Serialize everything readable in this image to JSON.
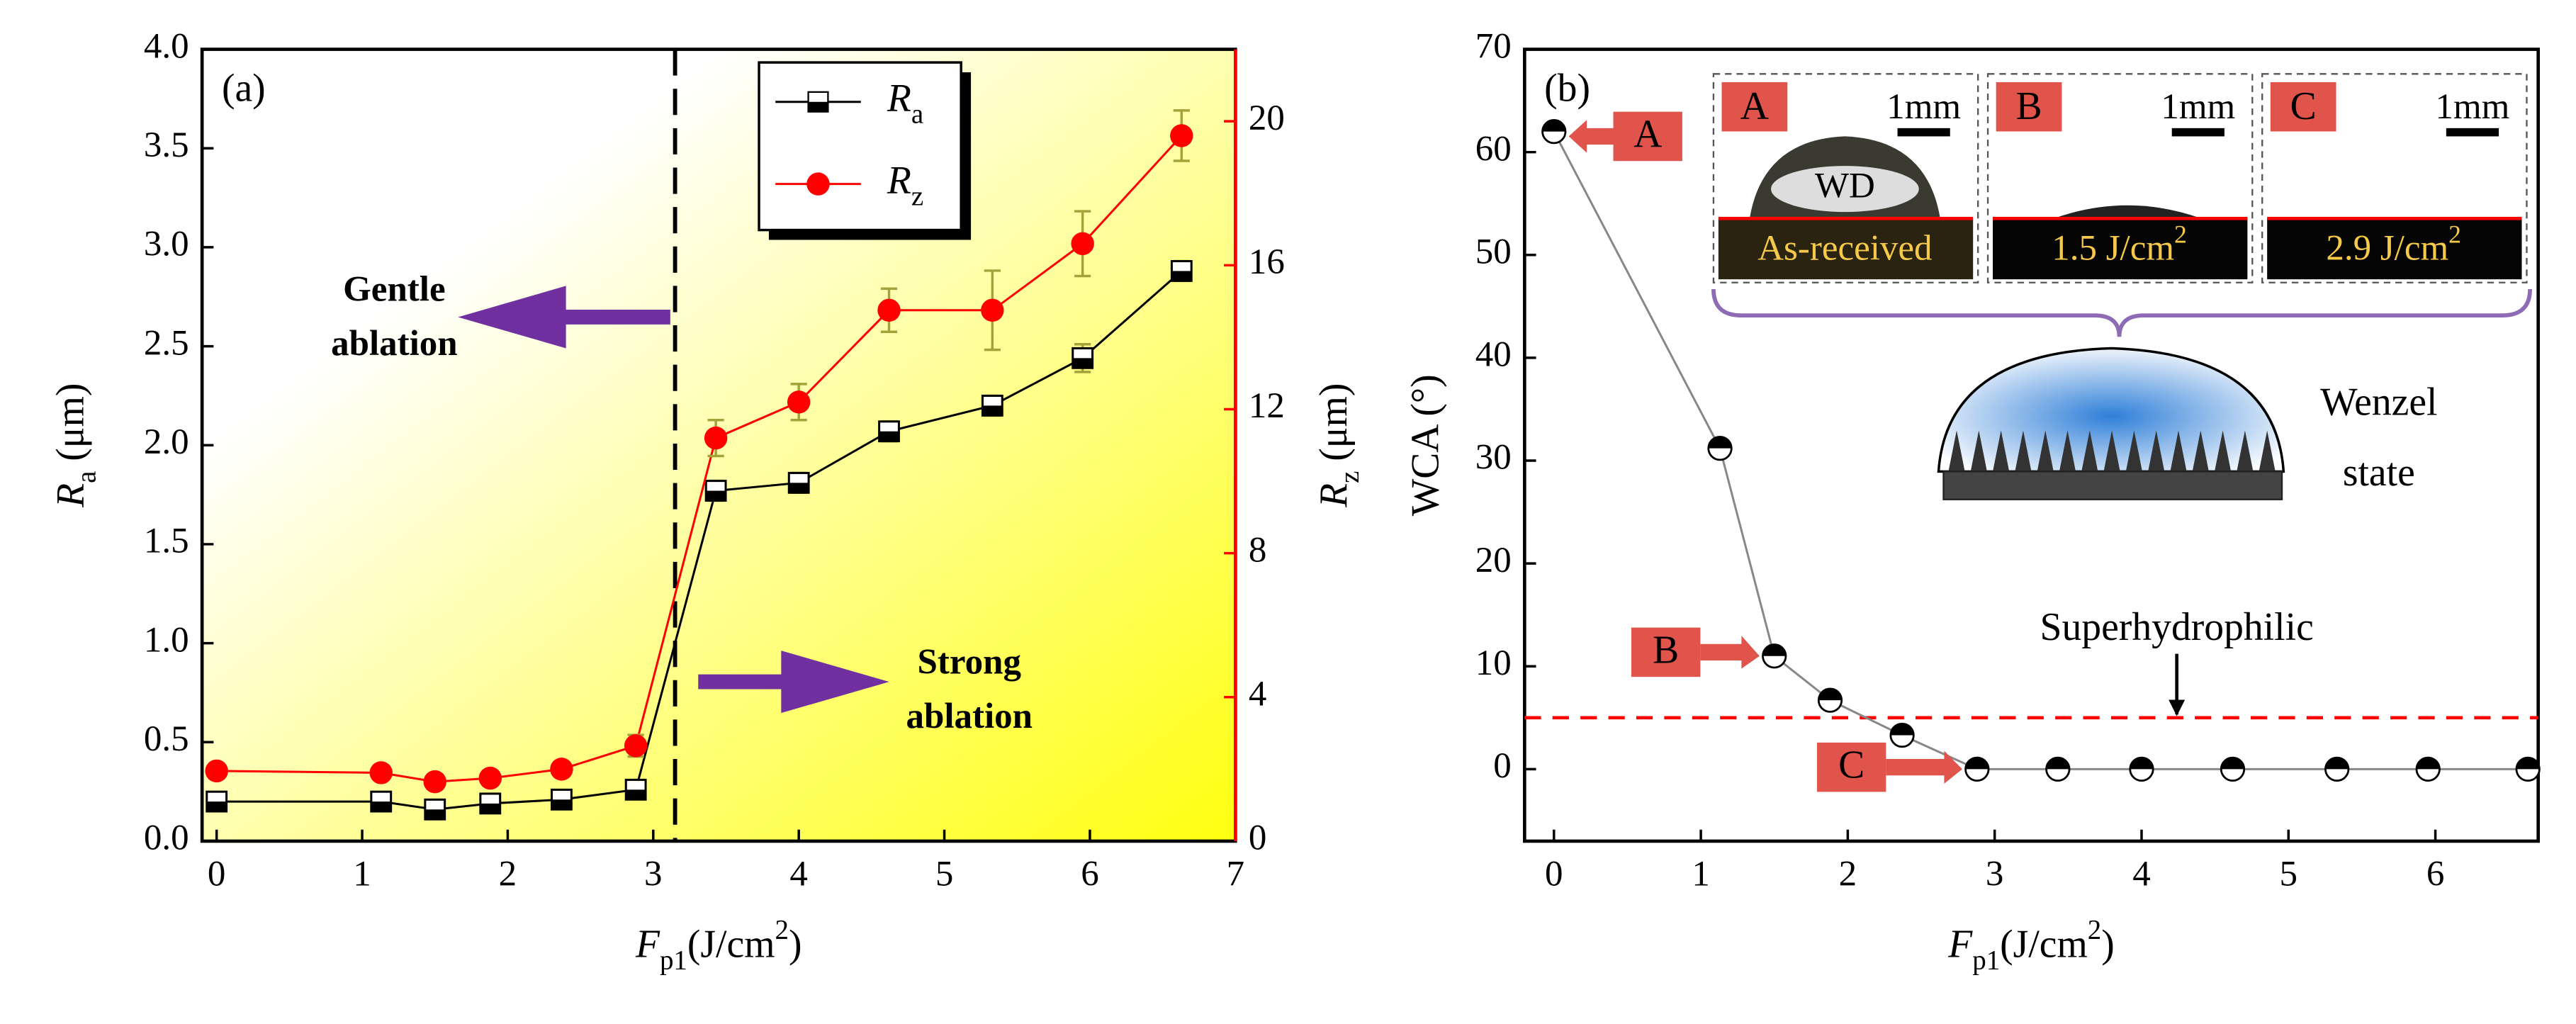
{
  "chart_data": [
    {
      "type": "line",
      "label": "(a)",
      "xlabel": [
        "F",
        "p1",
        "(J/cm",
        "2",
        ")"
      ],
      "ylabel": [
        "R",
        "a",
        " (μm)"
      ],
      "y2label": [
        "R",
        "z",
        " (μm)"
      ],
      "xlim": [
        -0.1,
        7
      ],
      "xticks": [
        0,
        1,
        2,
        3,
        4,
        5,
        6,
        7
      ],
      "ylim": [
        0,
        4
      ],
      "yticks": [
        {
          "value": 0,
          "label": "0.0"
        },
        0.5,
        {
          "value": 1,
          "label": "1.0"
        },
        1.5,
        {
          "value": 2,
          "label": "2.0"
        },
        2.5,
        {
          "value": 3,
          "label": "3.0"
        },
        3.5,
        {
          "value": 4,
          "label": "4.0"
        }
      ],
      "y2lim": [
        0,
        22
      ],
      "y2ticks": [
        0,
        4,
        8,
        12,
        16,
        20
      ],
      "x": [
        0,
        1.13,
        1.5,
        1.88,
        2.37,
        2.88,
        3.43,
        4.0,
        4.62,
        5.33,
        5.95,
        6.63
      ],
      "error_color": "#a3a33a",
      "series": [
        {
          "name": "R",
          "name_sub": "a",
          "color": "#000000",
          "values": [
            0.2,
            0.2,
            0.16,
            0.19,
            0.21,
            0.26,
            1.77,
            1.81,
            2.07,
            2.2,
            2.44,
            2.88
          ],
          "errors": [
            0.03,
            0.03,
            0.03,
            0.03,
            0.03,
            0.04,
            0.05,
            0.05,
            0.05,
            0.05,
            0.07,
            0.05
          ]
        },
        {
          "name": "R",
          "name_sub": "z",
          "color": "#ff0000",
          "axis": "y2",
          "values": [
            1.95,
            1.9,
            1.65,
            1.75,
            2.0,
            2.65,
            11.2,
            12.2,
            14.75,
            14.75,
            16.6,
            19.6
          ],
          "errors": [
            0.2,
            0.2,
            0.2,
            0.2,
            0.2,
            0.3,
            0.5,
            0.5,
            0.6,
            1.1,
            0.9,
            0.7
          ]
        }
      ],
      "threshold_x": 3.15,
      "annotations": [
        [
          "Gentle",
          "ablation"
        ],
        [
          "Strong",
          "ablation"
        ]
      ],
      "arrow_color": "#7030a0"
    },
    {
      "type": "line",
      "label": "(b)",
      "xlabel": [
        "F",
        "p1",
        "(J/cm",
        "2",
        ")"
      ],
      "ylabel": "WCA (°)",
      "xlim": [
        -0.2,
        6.7
      ],
      "xticks": [
        0,
        1,
        2,
        3,
        4,
        5,
        6
      ],
      "ylim": [
        -7,
        70
      ],
      "yticks": [
        0,
        10,
        20,
        30,
        40,
        50,
        60,
        70
      ],
      "x": [
        0,
        1.13,
        1.5,
        1.88,
        2.37,
        2.88,
        3.43,
        4.0,
        4.62,
        5.33,
        5.95,
        6.63
      ],
      "series": [
        {
          "color": "#888888",
          "values": [
            62,
            31.2,
            11,
            6.7,
            3.3,
            0,
            0,
            0,
            0,
            0,
            0,
            0
          ]
        }
      ],
      "reference_line": {
        "value": 5,
        "label": "Superhydrophilic",
        "color": "#ff0000"
      },
      "callouts": [
        "A",
        "B",
        "C"
      ],
      "insets": [
        {
          "label": "A",
          "scale": "1mm",
          "drop_label": "WD",
          "caption": [
            "As-received"
          ]
        },
        {
          "label": "B",
          "scale": "1mm",
          "caption": [
            "1.5 J/cm",
            "2"
          ]
        },
        {
          "label": "C",
          "scale": "1mm",
          "caption": [
            "2.9 J/cm",
            "2"
          ]
        }
      ],
      "model": [
        "Wenzel",
        "state"
      ]
    }
  ]
}
